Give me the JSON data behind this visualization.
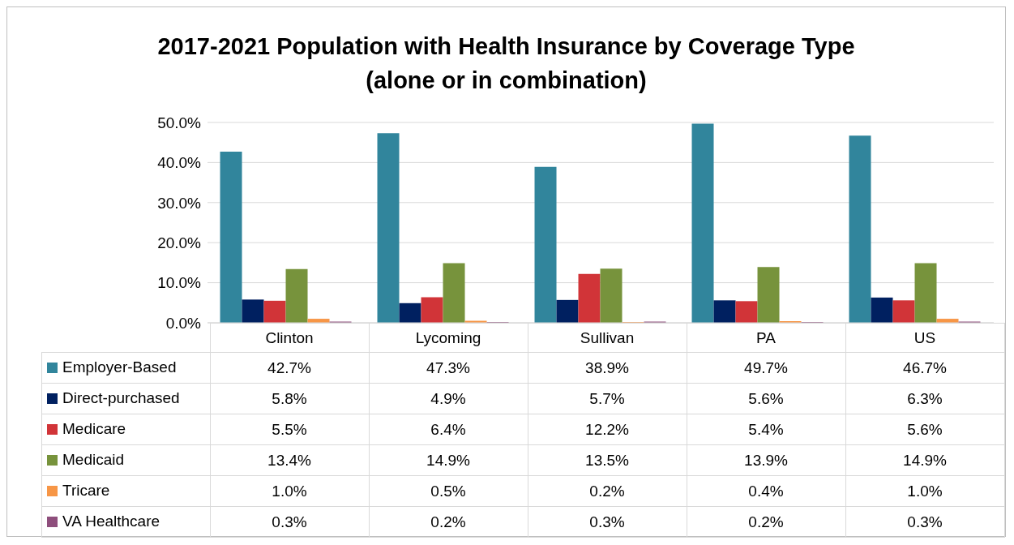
{
  "chart_data": {
    "type": "bar",
    "title": "2017-2021 Population with Health Insurance by Coverage Type\n(alone or in combination)",
    "categories": [
      "Clinton",
      "Lycoming",
      "Sullivan",
      "PA",
      "US"
    ],
    "series": [
      {
        "name": "Employer-Based",
        "color": "#31859c",
        "values": [
          42.7,
          47.3,
          38.9,
          49.7,
          46.7
        ],
        "value_labels": [
          "42.7%",
          "47.3%",
          "38.9%",
          "49.7%",
          "46.7%"
        ]
      },
      {
        "name": "Direct-purchased",
        "color": "#002060",
        "values": [
          5.8,
          4.9,
          5.7,
          5.6,
          6.3
        ],
        "value_labels": [
          "5.8%",
          "4.9%",
          "5.7%",
          "5.6%",
          "6.3%"
        ]
      },
      {
        "name": "Medicare",
        "color": "#d13438",
        "values": [
          5.5,
          6.4,
          12.2,
          5.4,
          5.6
        ],
        "value_labels": [
          "5.5%",
          "6.4%",
          "12.2%",
          "5.4%",
          "5.6%"
        ]
      },
      {
        "name": "Medicaid",
        "color": "#77933c",
        "values": [
          13.4,
          14.9,
          13.5,
          13.9,
          14.9
        ],
        "value_labels": [
          "13.4%",
          "14.9%",
          "13.5%",
          "13.9%",
          "14.9%"
        ]
      },
      {
        "name": "Tricare",
        "color": "#f79646",
        "values": [
          1.0,
          0.5,
          0.2,
          0.4,
          1.0
        ],
        "value_labels": [
          "1.0%",
          "0.5%",
          "0.2%",
          "0.4%",
          "1.0%"
        ]
      },
      {
        "name": "VA Healthcare",
        "color": "#8e4e7c",
        "values": [
          0.3,
          0.2,
          0.3,
          0.2,
          0.3
        ],
        "value_labels": [
          "0.3%",
          "0.2%",
          "0.3%",
          "0.2%",
          "0.3%"
        ]
      }
    ],
    "ylim": [
      0,
      50
    ],
    "yticks": [
      {
        "value": 0,
        "label": "0.0%"
      },
      {
        "value": 10,
        "label": "10.0%"
      },
      {
        "value": 20,
        "label": "20.0%"
      },
      {
        "value": 30,
        "label": "30.0%"
      },
      {
        "value": 40,
        "label": "40.0%"
      },
      {
        "value": 50,
        "label": "50.0%"
      }
    ],
    "grid": "y",
    "legend": "bottom"
  }
}
